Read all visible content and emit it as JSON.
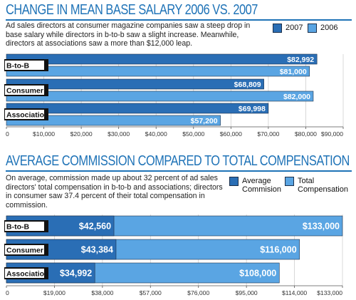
{
  "colors": {
    "accent": "#1f73b7",
    "series_dark": "#2a6eb5",
    "series_light": "#5aa5e3",
    "label_bg": "#111111",
    "grid": "#cfcfcf"
  },
  "section1": {
    "title": "CHANGE IN MEAN BASE SALARY 2006 VS. 2007",
    "description": "Ad sales directors at consumer magazine companies saw a steep drop in base salary while directors in b-to-b saw a slight increase. Meanwhile, directors at associations saw a more than $12,000 leap.",
    "legend": [
      "2007",
      "2006"
    ]
  },
  "section2": {
    "title": "AVERAGE COMMISSION COMPARED TO TOTAL COMPENSATION",
    "description": "On average, commission made up about 32 percent of ad sales directors' total compensation in b-to-b and associations; directors in consumer saw 37.4 percent of their total compensation in commission.",
    "legend": [
      "Average Commision",
      "Total Compensation"
    ]
  },
  "chart_data": [
    {
      "type": "bar",
      "orientation": "horizontal",
      "title": "CHANGE IN MEAN BASE SALARY 2006 VS. 2007",
      "categories": [
        "B-to-B",
        "Consumer",
        "Association"
      ],
      "series": [
        {
          "name": "2007",
          "values": [
            82992,
            68809,
            69998
          ],
          "labels": [
            "$82,992",
            "$68,809",
            "$69,998"
          ]
        },
        {
          "name": "2006",
          "values": [
            81000,
            82000,
            57200
          ],
          "labels": [
            "$81,000",
            "$82,000",
            "$57,200"
          ]
        }
      ],
      "xlim": [
        0,
        90000
      ],
      "xticks": [
        0,
        10000,
        20000,
        30000,
        40000,
        50000,
        60000,
        70000,
        80000,
        90000
      ],
      "xtick_labels": [
        "0",
        "$10,000",
        "$20,000",
        "$30,000",
        "$40,000",
        "$50,000",
        "$60,000",
        "$70,000",
        "$80,000",
        "$90,000"
      ],
      "grid": true,
      "legend_position": "top-right"
    },
    {
      "type": "bar",
      "orientation": "horizontal",
      "stacked": "overlay",
      "title": "AVERAGE COMMISSION COMPARED TO TOTAL COMPENSATION",
      "categories": [
        "B-to-B",
        "Consumer",
        "Association"
      ],
      "series": [
        {
          "name": "Average Commision",
          "values": [
            42560,
            43384,
            34992
          ],
          "labels": [
            "$42,560",
            "$43,384",
            "$34,992"
          ]
        },
        {
          "name": "Total Compensation",
          "values": [
            133000,
            116000,
            108000
          ],
          "labels": [
            "$133,000",
            "$116,000",
            "$108,000"
          ]
        }
      ],
      "xlim": [
        0,
        133000
      ],
      "xticks": [
        0,
        19000,
        38000,
        57000,
        76000,
        95000,
        114000,
        133000
      ],
      "xtick_labels": [
        "0",
        "$19,000",
        "$38,000",
        "$57,000",
        "$76,000",
        "$95,000",
        "$114,000",
        "$133,000"
      ],
      "grid": true,
      "legend_position": "top-right"
    }
  ]
}
